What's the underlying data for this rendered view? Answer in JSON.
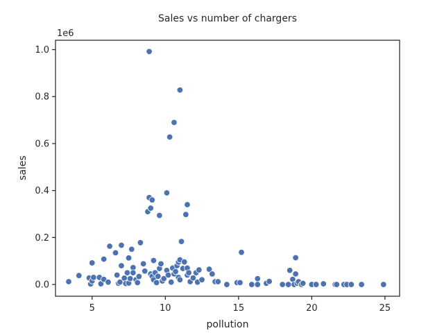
{
  "chart_data": {
    "type": "scatter",
    "title": "Sales vs number of chargers",
    "xlabel": "pollution",
    "ylabel": "sales",
    "y_offset_label": "1e6",
    "xlim": [
      2.5,
      26.0
    ],
    "ylim": [
      -0.05,
      1.04
    ],
    "x_ticks": [
      5,
      10,
      15,
      20,
      25
    ],
    "x_tick_labels": [
      "5",
      "10",
      "15",
      "20",
      "25"
    ],
    "y_ticks": [
      0.0,
      0.2,
      0.4,
      0.6,
      0.8,
      1.0
    ],
    "y_tick_labels": [
      "0.0",
      "0.2",
      "0.4",
      "0.6",
      "0.8",
      "1.0"
    ],
    "grid": false,
    "marker_color": "#4c72b0",
    "marker_edge_color": "#ffffff",
    "points": [
      {
        "x": 3.4,
        "y": 0.012
      },
      {
        "x": 4.1,
        "y": 0.038
      },
      {
        "x": 4.8,
        "y": 0.028
      },
      {
        "x": 5.0,
        "y": 0.092
      },
      {
        "x": 4.9,
        "y": 0.002
      },
      {
        "x": 5.0,
        "y": 0.015
      },
      {
        "x": 5.1,
        "y": 0.03
      },
      {
        "x": 5.5,
        "y": 0.03
      },
      {
        "x": 5.6,
        "y": 0.003
      },
      {
        "x": 5.8,
        "y": 0.022
      },
      {
        "x": 5.8,
        "y": 0.108
      },
      {
        "x": 6.1,
        "y": 0.01
      },
      {
        "x": 6.2,
        "y": 0.163
      },
      {
        "x": 6.6,
        "y": 0.135
      },
      {
        "x": 6.7,
        "y": 0.04
      },
      {
        "x": 6.8,
        "y": 0.005
      },
      {
        "x": 6.9,
        "y": 0.01
      },
      {
        "x": 7.0,
        "y": 0.08
      },
      {
        "x": 7.0,
        "y": 0.167
      },
      {
        "x": 7.2,
        "y": 0.027
      },
      {
        "x": 7.3,
        "y": 0.004
      },
      {
        "x": 7.4,
        "y": 0.05
      },
      {
        "x": 7.5,
        "y": 0.113
      },
      {
        "x": 7.5,
        "y": 0.006
      },
      {
        "x": 7.6,
        "y": 0.025
      },
      {
        "x": 7.7,
        "y": 0.15
      },
      {
        "x": 7.8,
        "y": 0.072
      },
      {
        "x": 7.8,
        "y": 0.05
      },
      {
        "x": 8.0,
        "y": 0.02
      },
      {
        "x": 8.1,
        "y": 0.008
      },
      {
        "x": 8.2,
        "y": 0.034
      },
      {
        "x": 8.3,
        "y": 0.178
      },
      {
        "x": 8.5,
        "y": 0.088
      },
      {
        "x": 8.6,
        "y": 0.057
      },
      {
        "x": 8.8,
        "y": 0.31
      },
      {
        "x": 8.9,
        "y": 0.37
      },
      {
        "x": 8.9,
        "y": 0.992
      },
      {
        "x": 9.0,
        "y": 0.325
      },
      {
        "x": 9.0,
        "y": 0.045
      },
      {
        "x": 9.1,
        "y": 0.035
      },
      {
        "x": 9.1,
        "y": 0.36
      },
      {
        "x": 9.2,
        "y": 0.102
      },
      {
        "x": 9.2,
        "y": 0.02
      },
      {
        "x": 9.3,
        "y": 0.05
      },
      {
        "x": 9.4,
        "y": 0.008
      },
      {
        "x": 9.5,
        "y": 0.035
      },
      {
        "x": 9.6,
        "y": 0.294
      },
      {
        "x": 9.6,
        "y": 0.068
      },
      {
        "x": 9.7,
        "y": 0.088
      },
      {
        "x": 9.8,
        "y": 0.015
      },
      {
        "x": 9.9,
        "y": 0.025
      },
      {
        "x": 10.1,
        "y": 0.06
      },
      {
        "x": 10.1,
        "y": 0.39
      },
      {
        "x": 10.2,
        "y": 0.04
      },
      {
        "x": 10.3,
        "y": 0.628
      },
      {
        "x": 10.4,
        "y": 0.01
      },
      {
        "x": 10.5,
        "y": 0.07
      },
      {
        "x": 10.6,
        "y": 0.045
      },
      {
        "x": 10.6,
        "y": 0.69
      },
      {
        "x": 10.7,
        "y": 0.055
      },
      {
        "x": 10.8,
        "y": 0.08
      },
      {
        "x": 10.9,
        "y": 0.095
      },
      {
        "x": 10.9,
        "y": 0.03
      },
      {
        "x": 11.0,
        "y": 0.02
      },
      {
        "x": 11.0,
        "y": 0.105
      },
      {
        "x": 11.0,
        "y": 0.828
      },
      {
        "x": 11.1,
        "y": 0.183
      },
      {
        "x": 11.2,
        "y": 0.068
      },
      {
        "x": 11.3,
        "y": 0.096
      },
      {
        "x": 11.4,
        "y": 0.298
      },
      {
        "x": 11.5,
        "y": 0.34
      },
      {
        "x": 11.5,
        "y": 0.04
      },
      {
        "x": 11.5,
        "y": 0.07
      },
      {
        "x": 11.6,
        "y": 0.05
      },
      {
        "x": 11.7,
        "y": 0.012
      },
      {
        "x": 11.9,
        "y": 0.028
      },
      {
        "x": 12.1,
        "y": 0.05
      },
      {
        "x": 12.2,
        "y": 0.01
      },
      {
        "x": 12.3,
        "y": 0.062
      },
      {
        "x": 12.5,
        "y": 0.02
      },
      {
        "x": 13.0,
        "y": 0.065
      },
      {
        "x": 13.2,
        "y": 0.045
      },
      {
        "x": 13.4,
        "y": 0.012
      },
      {
        "x": 13.6,
        "y": 0.012
      },
      {
        "x": 14.2,
        "y": 0.0
      },
      {
        "x": 14.9,
        "y": 0.008
      },
      {
        "x": 15.1,
        "y": 0.008
      },
      {
        "x": 15.2,
        "y": 0.137
      },
      {
        "x": 15.9,
        "y": 0.0
      },
      {
        "x": 16.3,
        "y": 0.025
      },
      {
        "x": 16.3,
        "y": 0.0
      },
      {
        "x": 16.9,
        "y": 0.005
      },
      {
        "x": 17.1,
        "y": 0.013
      },
      {
        "x": 18.0,
        "y": 0.0
      },
      {
        "x": 18.4,
        "y": 0.0
      },
      {
        "x": 18.5,
        "y": 0.06
      },
      {
        "x": 18.7,
        "y": 0.022
      },
      {
        "x": 18.8,
        "y": 0.0
      },
      {
        "x": 18.9,
        "y": 0.045
      },
      {
        "x": 18.9,
        "y": 0.114
      },
      {
        "x": 19.0,
        "y": 0.005
      },
      {
        "x": 19.1,
        "y": 0.012
      },
      {
        "x": 19.3,
        "y": 0.0
      },
      {
        "x": 19.4,
        "y": 0.005
      },
      {
        "x": 20.0,
        "y": 0.0
      },
      {
        "x": 20.3,
        "y": 0.0
      },
      {
        "x": 20.8,
        "y": 0.003
      },
      {
        "x": 21.6,
        "y": 0.0
      },
      {
        "x": 21.7,
        "y": 0.0
      },
      {
        "x": 22.2,
        "y": 0.0
      },
      {
        "x": 22.4,
        "y": 0.0
      },
      {
        "x": 22.7,
        "y": 0.0
      },
      {
        "x": 23.4,
        "y": 0.0
      },
      {
        "x": 24.9,
        "y": 0.0
      }
    ]
  }
}
